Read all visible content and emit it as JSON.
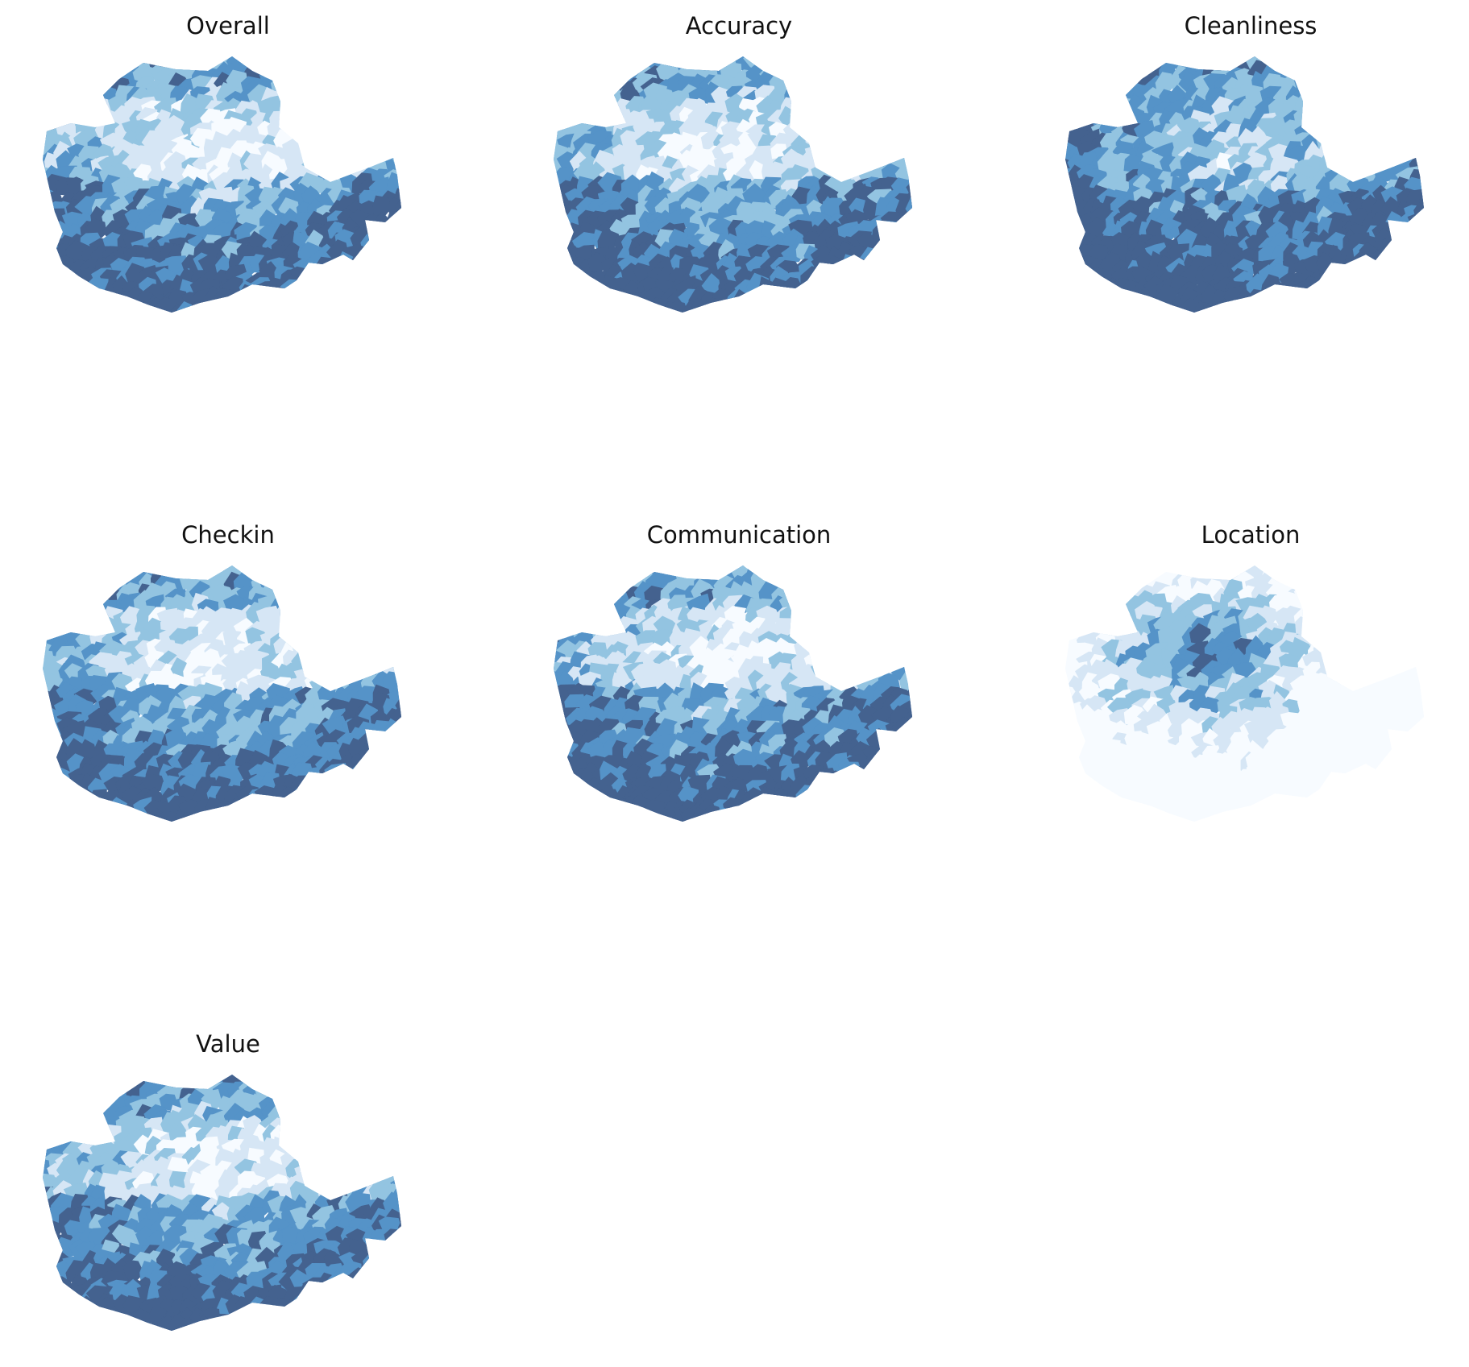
{
  "figure": {
    "panels": [
      {
        "title": "Overall",
        "seed": 11,
        "pattern": "edge"
      },
      {
        "title": "Accuracy",
        "seed": 23,
        "pattern": "edge"
      },
      {
        "title": "Cleanliness",
        "seed": 37,
        "pattern": "mixed"
      },
      {
        "title": "Checkin",
        "seed": 41,
        "pattern": "edge"
      },
      {
        "title": "Communication",
        "seed": 53,
        "pattern": "edge"
      },
      {
        "title": "Location",
        "seed": 67,
        "pattern": "center"
      },
      {
        "title": "Value",
        "seed": 79,
        "pattern": "edge"
      }
    ],
    "palette": [
      "#f7fbff",
      "#d6e6f5",
      "#93c4e1",
      "#5593c8",
      "#44628f"
    ],
    "axes_visible": false
  }
}
